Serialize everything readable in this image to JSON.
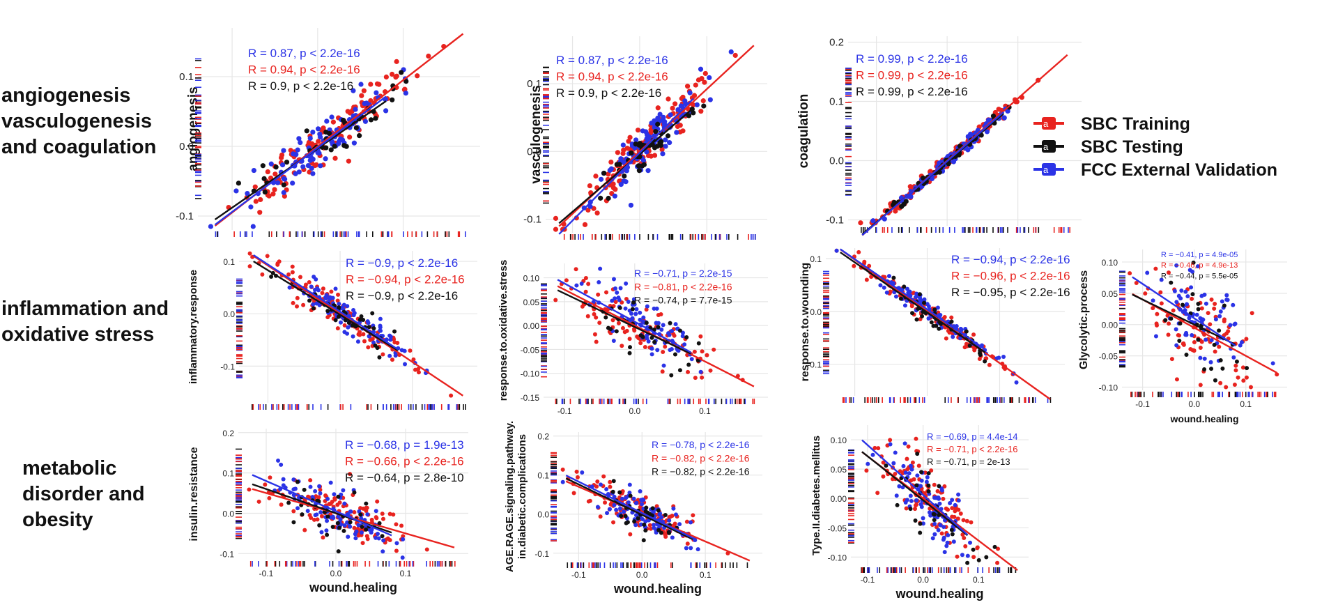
{
  "row_labels": [
    [
      "angiogenesis",
      "vasculogenesis",
      "and coagulation"
    ],
    [
      "inflammation and",
      "oxidative stress"
    ],
    [
      "metabolic",
      "disorder and",
      "obesity"
    ]
  ],
  "legend": [
    {
      "label": "SBC Training",
      "color": "#e8231f"
    },
    {
      "label": "SBC Testing",
      "color": "#111111"
    },
    {
      "label": "FCC External Validation",
      "color": "#2b33e6"
    }
  ],
  "colors": {
    "training": "#e8231f",
    "testing": "#111111",
    "validation": "#2b33e6",
    "grid": "#e6e6e6"
  },
  "chart_data": [
    {
      "id": "angiogenesis",
      "type": "scatter",
      "row": 0,
      "col": 0,
      "ylabel": "angiogenesis",
      "xlabel": "",
      "xlim": [
        -0.14,
        0.19
      ],
      "ylim": [
        -0.12,
        0.17
      ],
      "xticks": [],
      "yticks": [
        -0.1,
        0.0,
        0.1
      ],
      "ytick_labels": [
        "-0.1",
        "0.0",
        "0.1"
      ],
      "spread": 0.016,
      "mid_x": 0.01,
      "n_points": 130,
      "series": [
        {
          "name": "SBC Training",
          "slope": 0.95,
          "intercept": 0.0,
          "stat": "R = 0.94, p < 2.2e-16"
        },
        {
          "name": "SBC Testing",
          "slope": 0.85,
          "intercept": -0.003,
          "stat": "R = 0.9, p < 2.2e-16"
        },
        {
          "name": "FCC External Validation",
          "slope": 0.92,
          "intercept": -0.002,
          "stat": "R = 0.87, p < 2.2e-16"
        }
      ]
    },
    {
      "id": "vasculogenesis",
      "type": "scatter",
      "row": 0,
      "col": 1,
      "ylabel": "vasculogenesis",
      "xlabel": "",
      "xlim": [
        -0.14,
        0.19
      ],
      "ylim": [
        -0.12,
        0.17
      ],
      "xticks": [],
      "yticks": [
        -0.1,
        0.0,
        0.1
      ],
      "ytick_labels": [
        "-0.1",
        "0.0",
        "0.1"
      ],
      "spread": 0.016,
      "mid_x": 0.01,
      "n_points": 130,
      "series": [
        {
          "name": "SBC Training",
          "slope": 0.92,
          "intercept": 0.0,
          "stat": "R = 0.94, p < 2.2e-16"
        },
        {
          "name": "SBC Testing",
          "slope": 0.85,
          "intercept": -0.004,
          "stat": "R = 0.9, p < 2.2e-16"
        },
        {
          "name": "FCC External Validation",
          "slope": 1.0,
          "intercept": -0.002,
          "stat": "R = 0.87, p < 2.2e-16"
        }
      ]
    },
    {
      "id": "coagulation",
      "type": "scatter",
      "row": 0,
      "col": 2,
      "ylabel": "coagulation",
      "xlabel": "",
      "xlim": [
        -0.14,
        0.19
      ],
      "ylim": [
        -0.11,
        0.21
      ],
      "xticks": [],
      "yticks": [
        -0.1,
        0.0,
        0.1,
        0.2
      ],
      "ytick_labels": [
        "-0.1",
        "0.0",
        "0.1",
        "0.2"
      ],
      "spread": 0.005,
      "mid_x": 0.0,
      "n_points": 130,
      "series": [
        {
          "name": "SBC Training",
          "slope": 1.05,
          "intercept": 0.0,
          "stat": "R = 0.99, p < 2.2e-16"
        },
        {
          "name": "SBC Testing",
          "slope": 1.02,
          "intercept": -0.002,
          "stat": "R = 0.99, p < 2.2e-16"
        },
        {
          "name": "FCC External Validation",
          "slope": 1.04,
          "intercept": -0.001,
          "stat": "R = 0.99, p < 2.2e-16"
        }
      ]
    },
    {
      "id": "inflammatory.response",
      "type": "scatter",
      "row": 1,
      "col": 0,
      "ylabel": "inflammatory.response",
      "xlabel": "",
      "xlim": [
        -0.14,
        0.19
      ],
      "ylim": [
        -0.17,
        0.12
      ],
      "xticks": [],
      "yticks": [
        -0.1,
        0.0,
        0.1
      ],
      "ytick_labels": [
        "-0.1",
        "0.0",
        "0.1"
      ],
      "spread": 0.014,
      "mid_x": 0.01,
      "n_points": 130,
      "series": [
        {
          "name": "SBC Training",
          "slope": -0.92,
          "intercept": 0.0,
          "stat": "R = −0.94, p < 2.2e-16"
        },
        {
          "name": "SBC Testing",
          "slope": -0.85,
          "intercept": -0.002,
          "stat": "R = −0.9, p < 2.2e-16"
        },
        {
          "name": "FCC External Validation",
          "slope": -0.9,
          "intercept": 0.004,
          "stat": "R = −0.9, p < 2.2e-16"
        }
      ]
    },
    {
      "id": "response.to.oxidative.stress",
      "type": "scatter",
      "row": 1,
      "col": 1,
      "ylabel": "response.to.oxidative.stress",
      "xlabel": "",
      "xlim": [
        -0.13,
        0.19
      ],
      "ylim": [
        -0.15,
        0.13
      ],
      "xticks": [
        -0.1,
        0.0,
        0.1
      ],
      "xtick_labels": [
        "-0.1",
        "0.0",
        "0.1"
      ],
      "yticks": [
        -0.15,
        -0.1,
        -0.05,
        0.0,
        0.05,
        0.1
      ],
      "ytick_labels": [
        "-0.15",
        "-0.10",
        "-0.05",
        "0.00",
        "0.05",
        "0.10"
      ],
      "spread": 0.025,
      "mid_x": 0.01,
      "n_points": 110,
      "series": [
        {
          "name": "SBC Training",
          "slope": -0.75,
          "intercept": 0.0,
          "stat": "R = −0.81, p < 2.2e-16"
        },
        {
          "name": "SBC Testing",
          "slope": -0.7,
          "intercept": -0.003,
          "stat": "R = −0.74, p = 7.7e-15"
        },
        {
          "name": "FCC External Validation",
          "slope": -0.8,
          "intercept": 0.008,
          "stat": "R = −0.71, p = 2.2e-15"
        }
      ]
    },
    {
      "id": "response.to.wounding",
      "type": "scatter",
      "row": 1,
      "col": 2,
      "ylabel": "response.to.wounding",
      "xlabel": "",
      "xlim": [
        -0.14,
        0.19
      ],
      "ylim": [
        -0.16,
        0.12
      ],
      "xticks": [],
      "yticks": [
        -0.1,
        0.0,
        0.1
      ],
      "ytick_labels": [
        "-0.1",
        "0.0",
        "0.1"
      ],
      "spread": 0.01,
      "mid_x": 0.01,
      "n_points": 130,
      "series": [
        {
          "name": "SBC Training",
          "slope": -0.98,
          "intercept": 0.0,
          "stat": "R = −0.96, p < 2.2e-16"
        },
        {
          "name": "SBC Testing",
          "slope": -0.95,
          "intercept": -0.002,
          "stat": "R = −0.95, p < 2.2e-16"
        },
        {
          "name": "FCC External Validation",
          "slope": -0.95,
          "intercept": 0.004,
          "stat": "R = −0.94, p < 2.2e-16"
        }
      ]
    },
    {
      "id": "Glycolytic.process",
      "type": "scatter",
      "row": 1,
      "col": 3,
      "ylabel": "Glycolytic.process",
      "xlabel": "wound.healing",
      "xlim": [
        -0.14,
        0.18
      ],
      "ylim": [
        -0.105,
        0.12
      ],
      "xticks": [
        -0.1,
        0.0,
        0.1
      ],
      "xtick_labels": [
        "-0.1",
        "0.0",
        "0.1"
      ],
      "yticks": [
        -0.1,
        -0.05,
        0.0,
        0.05,
        0.1
      ],
      "ytick_labels": [
        "-0.10",
        "-0.05",
        "0.00",
        "0.05",
        "0.10"
      ],
      "spread": 0.035,
      "mid_x": 0.01,
      "n_points": 90,
      "series": [
        {
          "name": "SBC Training",
          "slope": -0.45,
          "intercept": -0.005,
          "stat": "R = −0.46, p = 4.9e-13"
        },
        {
          "name": "SBC Testing",
          "slope": -0.4,
          "intercept": 0.0,
          "stat": "R = −0.44, p = 5.5e-05"
        },
        {
          "name": "FCC External Validation",
          "slope": -0.55,
          "intercept": 0.01,
          "stat": "R = −0.41, p = 4.9e-05"
        }
      ]
    },
    {
      "id": "insulin.resistance",
      "type": "scatter",
      "row": 2,
      "col": 0,
      "ylabel": "insulin.resistance",
      "xlabel": "wound.healing",
      "xlim": [
        -0.14,
        0.19
      ],
      "ylim": [
        -0.115,
        0.21
      ],
      "xticks": [
        -0.1,
        0.0,
        0.1
      ],
      "xtick_labels": [
        "-0.1",
        "0.0",
        "0.1"
      ],
      "yticks": [
        -0.1,
        0.0,
        0.1,
        0.2
      ],
      "ytick_labels": [
        "-0.1",
        "0.0",
        "0.1",
        "0.2"
      ],
      "spread": 0.03,
      "mid_x": 0.0,
      "n_points": 120,
      "series": [
        {
          "name": "SBC Training",
          "slope": -0.5,
          "intercept": 0.0,
          "stat": "R = −0.66, p < 2.2e-16"
        },
        {
          "name": "SBC Testing",
          "slope": -0.6,
          "intercept": 0.0,
          "stat": "R = −0.64, p = 2.8e-10"
        },
        {
          "name": "FCC External Validation",
          "slope": -0.75,
          "intercept": 0.005,
          "stat": "R = −0.68, p = 1.9e-13"
        }
      ]
    },
    {
      "id": "AGE.RAGE.signaling.pathway",
      "type": "scatter",
      "row": 2,
      "col": 1,
      "ylabel": "AGE.RAGE.signaling.pathway.",
      "ylabel2": "in.diabetic.complications",
      "xlabel": "wound.healing",
      "xlim": [
        -0.14,
        0.19
      ],
      "ylim": [
        -0.12,
        0.21
      ],
      "xticks": [
        -0.1,
        0.0,
        0.1
      ],
      "xtick_labels": [
        "-0.1",
        "0.0",
        "0.1"
      ],
      "yticks": [
        -0.1,
        0.0,
        0.1,
        0.2
      ],
      "ytick_labels": [
        "-0.1",
        "0.0",
        "0.1",
        "0.2"
      ],
      "spread": 0.022,
      "mid_x": 0.0,
      "n_points": 120,
      "series": [
        {
          "name": "SBC Training",
          "slope": -0.7,
          "intercept": 0.0,
          "stat": "R = −0.82, p < 2.2e-16"
        },
        {
          "name": "SBC Testing",
          "slope": -0.78,
          "intercept": -0.002,
          "stat": "R = −0.82, p < 2.2e-16"
        },
        {
          "name": "FCC External Validation",
          "slope": -0.8,
          "intercept": 0.003,
          "stat": "R = −0.78, p < 2.2e-16"
        }
      ]
    },
    {
      "id": "Type.II.diabetes.mellitus",
      "type": "scatter",
      "row": 2,
      "col": 2,
      "ylabel": "Type.II.diabetes.mellitus",
      "xlabel": "wound.healing",
      "xlim": [
        -0.13,
        0.19
      ],
      "ylim": [
        -0.115,
        0.125
      ],
      "xticks": [
        -0.1,
        0.0,
        0.1
      ],
      "xtick_labels": [
        "-0.1",
        "0.0",
        "0.1"
      ],
      "yticks": [
        -0.1,
        -0.05,
        0.0,
        0.05,
        0.1
      ],
      "ytick_labels": [
        "-0.10",
        "-0.05",
        "0.00",
        "0.05",
        "0.10"
      ],
      "spread": 0.028,
      "mid_x": 0.01,
      "n_points": 110,
      "series": [
        {
          "name": "SBC Training",
          "slope": -0.72,
          "intercept": 0.0,
          "stat": "R = −0.71, p < 2.2e-16"
        },
        {
          "name": "SBC Testing",
          "slope": -0.75,
          "intercept": -0.003,
          "stat": "R = −0.71, p = 2e-13"
        },
        {
          "name": "FCC External Validation",
          "slope": -0.85,
          "intercept": 0.006,
          "stat": "R = −0.69, p = 4.4e-14"
        }
      ]
    }
  ]
}
